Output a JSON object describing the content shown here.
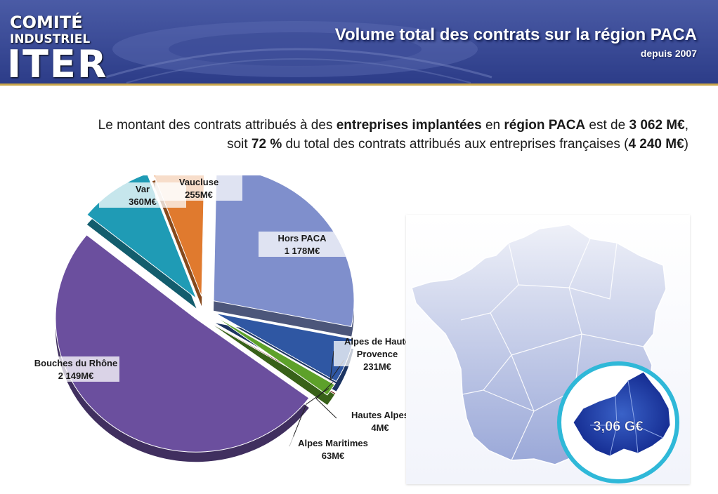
{
  "header": {
    "logo_line1": "COMITÉ",
    "logo_line2": "INDUSTRIEL",
    "logo_line3": "ITER",
    "title": "Volume total des contrats sur la région PACA",
    "subtitle": "depuis 2007"
  },
  "intro": {
    "line1_a": "Le montant des contrats attribués à des ",
    "line1_b": "entreprises implantées",
    "line1_c": " en ",
    "line1_d": "région PACA",
    "line1_e": " est de ",
    "line1_f": "3 062 M€",
    "line1_g": ",",
    "line2_a": "soit ",
    "line2_b": "72 %",
    "line2_c": " du total des contrats attribués aux entreprises françaises (",
    "line2_d": "4 240 M€",
    "line2_e": ")"
  },
  "chart_data": {
    "type": "pie",
    "title": "",
    "slices": [
      {
        "name": "Hors PACA",
        "value": 1178,
        "value_label": "1 178M€",
        "color": "#7f8fcc"
      },
      {
        "name": "Alpes de Haute Provence",
        "value": 231,
        "value_label": "231M€",
        "color": "#2f57a3"
      },
      {
        "name": "Hautes Alpes",
        "value": 4,
        "value_label": "4M€",
        "color": "#c0392b"
      },
      {
        "name": "Alpes Maritimes",
        "value": 63,
        "value_label": "63M€",
        "color": "#5da12a"
      },
      {
        "name": "Bouches du Rhône",
        "value": 2149,
        "value_label": "2 149M€",
        "color": "#6b4f9e"
      },
      {
        "name": "Var",
        "value": 360,
        "value_label": "360M€",
        "color": "#1f9bb5"
      },
      {
        "name": "Vaucluse",
        "value": 255,
        "value_label": "255M€",
        "color": "#e07a2e"
      }
    ]
  },
  "map": {
    "value_label": "3,06 G€",
    "france_color": "#c5cde8",
    "paca_color": "#1f3fa8",
    "circle_color": "#2fb8d8"
  }
}
